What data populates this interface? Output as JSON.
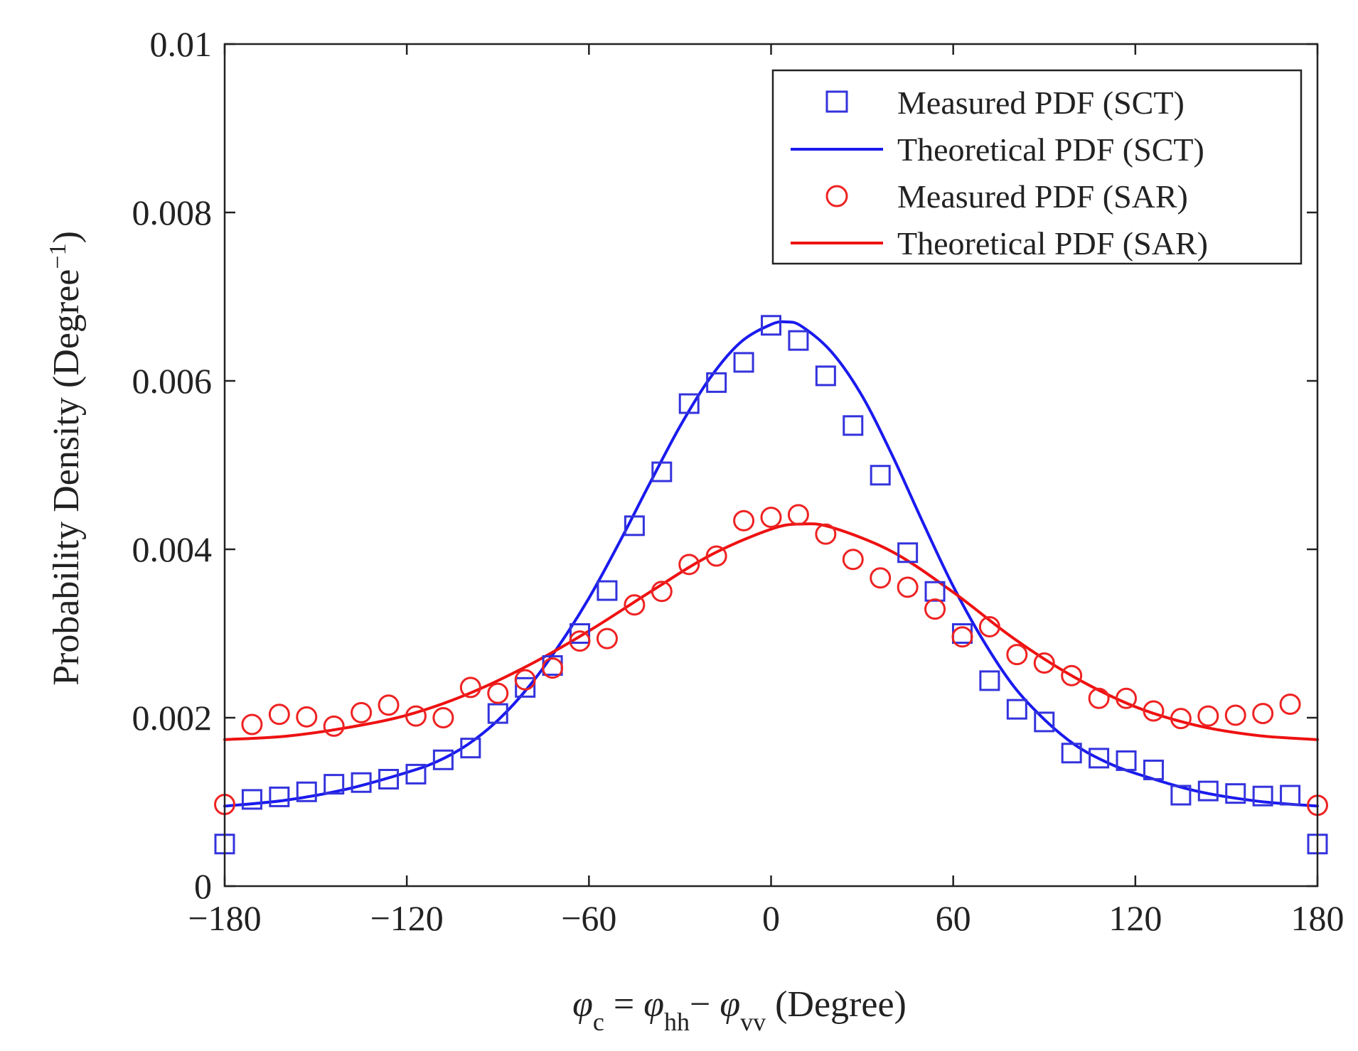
{
  "chart_data": {
    "type": "line",
    "title": "",
    "ylabel": "Probability Density (Degree⁻¹)",
    "ylabel_parts": {
      "main": "Probability Density (Degree",
      "sup": "−1",
      "close": ")"
    },
    "xlabel_parts": {
      "phi1": "φ",
      "sub1": "c",
      "eq": " = ",
      "phi2": "φ",
      "sub2": "hh",
      "minus": "− ",
      "phi3": "φ",
      "sub3": "vv",
      "unit": " (Degree)"
    },
    "xlim": [
      -180,
      180
    ],
    "ylim": [
      0,
      0.01
    ],
    "xticks": [
      -180,
      -120,
      -60,
      0,
      60,
      120,
      180
    ],
    "xtick_labels": [
      "−180",
      "−120",
      "−60",
      "0",
      "60",
      "120",
      "180"
    ],
    "yticks": [
      0,
      0.002,
      0.004,
      0.006,
      0.008,
      0.01
    ],
    "ytick_labels": [
      "0",
      "0.002",
      "0.004",
      "0.006",
      "0.008",
      "0.01"
    ],
    "grid": false,
    "legend_position": "top-right",
    "series": [
      {
        "name": "Measured PDF (SCT)",
        "kind": "scatter",
        "marker": "square",
        "color": "#3333dd",
        "x": [
          -180,
          -171,
          -162,
          -153,
          -144,
          -135,
          -126,
          -117,
          -108,
          -99,
          -90,
          -81,
          -72,
          -63,
          -54,
          -45,
          -36,
          -27,
          -18,
          -9,
          0,
          9,
          18,
          27,
          36,
          45,
          54,
          63,
          72,
          81,
          90,
          99,
          108,
          117,
          126,
          135,
          144,
          153,
          162,
          171,
          180
        ],
        "y": [
          0.0005,
          0.00103,
          0.00106,
          0.00112,
          0.00121,
          0.00123,
          0.00127,
          0.00133,
          0.0015,
          0.00164,
          0.00205,
          0.00236,
          0.00262,
          0.003,
          0.00351,
          0.00428,
          0.00492,
          0.00573,
          0.00598,
          0.00622,
          0.00666,
          0.00648,
          0.00606,
          0.00547,
          0.00488,
          0.00396,
          0.0035,
          0.003,
          0.00244,
          0.0021,
          0.00195,
          0.00158,
          0.00152,
          0.00149,
          0.00138,
          0.00108,
          0.00113,
          0.0011,
          0.00107,
          0.00108,
          0.0005
        ]
      },
      {
        "name": "Theoretical PDF (SCT)",
        "kind": "line",
        "color": "#1a1aee",
        "x": [
          -180,
          -160,
          -140,
          -120,
          -110,
          -100,
          -90,
          -80,
          -70,
          -60,
          -50,
          -40,
          -30,
          -20,
          -10,
          0,
          5,
          10,
          20,
          30,
          40,
          50,
          60,
          70,
          80,
          90,
          100,
          110,
          120,
          140,
          160,
          180
        ],
        "y": [
          0.00095,
          0.00102,
          0.00115,
          0.00135,
          0.00148,
          0.00168,
          0.00197,
          0.00236,
          0.00285,
          0.00342,
          0.00408,
          0.00478,
          0.00546,
          0.00604,
          0.00646,
          0.00667,
          0.0067,
          0.00665,
          0.00634,
          0.00582,
          0.00511,
          0.00432,
          0.00356,
          0.00291,
          0.00237,
          0.00198,
          0.00168,
          0.00148,
          0.00134,
          0.00113,
          0.00101,
          0.00095
        ]
      },
      {
        "name": "Measured PDF (SAR)",
        "kind": "scatter",
        "marker": "circle",
        "color": "#ee2222",
        "x": [
          -180,
          -171,
          -162,
          -153,
          -144,
          -135,
          -126,
          -117,
          -108,
          -99,
          -90,
          -81,
          -72,
          -63,
          -54,
          -45,
          -36,
          -27,
          -18,
          -9,
          0,
          9,
          18,
          27,
          36,
          45,
          54,
          63,
          72,
          81,
          90,
          99,
          108,
          117,
          126,
          135,
          144,
          153,
          162,
          171,
          180
        ],
        "y": [
          0.00097,
          0.00192,
          0.00204,
          0.00201,
          0.0019,
          0.00206,
          0.00215,
          0.00202,
          0.002,
          0.00236,
          0.00229,
          0.00245,
          0.00259,
          0.00291,
          0.00294,
          0.00334,
          0.0035,
          0.00382,
          0.00392,
          0.00434,
          0.00438,
          0.00441,
          0.00418,
          0.00388,
          0.00366,
          0.00355,
          0.00329,
          0.00296,
          0.00308,
          0.00275,
          0.00265,
          0.0025,
          0.00223,
          0.00223,
          0.00208,
          0.00199,
          0.00202,
          0.00203,
          0.00205,
          0.00216,
          0.00096
        ]
      },
      {
        "name": "Theoretical PDF (SAR)",
        "kind": "line",
        "color": "#ee1111",
        "x": [
          -180,
          -160,
          -140,
          -120,
          -100,
          -80,
          -60,
          -40,
          -20,
          0,
          10,
          20,
          40,
          60,
          80,
          100,
          120,
          140,
          160,
          180
        ],
        "y": [
          0.00174,
          0.00178,
          0.00188,
          0.00203,
          0.00228,
          0.00262,
          0.00303,
          0.00349,
          0.00393,
          0.00424,
          0.0043,
          0.00426,
          0.00397,
          0.00349,
          0.00294,
          0.00248,
          0.00213,
          0.00191,
          0.00179,
          0.00174
        ]
      }
    ]
  }
}
